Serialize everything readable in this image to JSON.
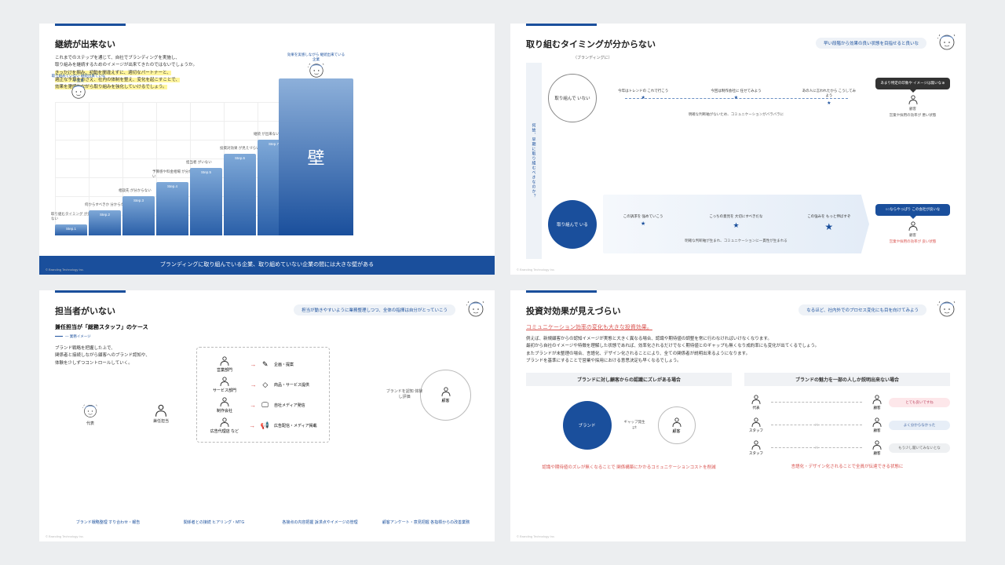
{
  "copyright": "© Branding Technology Inc.",
  "slide1": {
    "title": "継続が出来ない",
    "intro_a": "これまでのステップを通じて、自社でブランディングを実施し、",
    "intro_b": "取り組みを継続するためのイメージが出来てきたのではないでしょうか。",
    "hl_a": "きっかけを掴み、初動を間違えずに、適切なパートナーと、",
    "hl_b": "適正な予算をおさえ、社内の体制を整え、変化を起こすことで、",
    "hl_c": "効果を実感しながら取り組みを強化していけるでしょう。",
    "corp_left": "取り組めていない 継続出来ていない企業",
    "corp_right": "効果を実感しながら 継続出来ている企業",
    "step_prefix": "Step.",
    "step_labels": [
      "",
      "取り組むタイミング が分からない",
      "何からすべきか 分からない",
      "相談先 が分からない",
      "予算感や料金相場 が分からない",
      "担当者 がいない",
      "投資対効果 が見えづらい",
      "継続 が出来ない"
    ],
    "steps_count": 7,
    "wall": "壁",
    "footer": "ブランディングに取り組んでいる企業、取り組めていない企業の間には大きな壁がある"
  },
  "slide2": {
    "title": "取り組むタイミングが分からない",
    "pill": "早い段階から効果の良い状態を目指せると良いな",
    "side": "何故、早期に取り組むべきなのか？",
    "branding_label": "（ブランディングに）",
    "row1": {
      "circle": "取り組んで いない",
      "points": [
        "今年はトレンドの これで行こう",
        "今回は制作会社に 任せてみよう",
        "あの人に言われたから こうしてみよう"
      ],
      "subline": "明確な判断軸がないため、コミュニケーションがバラバラに",
      "speech": "あまり特定の印象や イメージは無いなぁ",
      "cust": "顧客",
      "result": "営業や採用の効率が 悪い状態"
    },
    "row2": {
      "circle": "取り組んで いる",
      "points": [
        "この訴求を 強めていこう",
        "こっちの意見を 大切にすべきだな",
        "この強みを もっと伸ばすぞ"
      ],
      "subline": "明確な判断軸が生まれ、コミュニケーションに一貫性が生まれる",
      "speech": "○○ならやっぱり この会社が良いな",
      "cust": "顧客",
      "result": "営業や採用の効率が 良い状態"
    }
  },
  "slide3": {
    "title": "担当者がいない",
    "pill": "担当が動きやすいように業務整理しつつ、全体の指揮は自分がとっていこう",
    "subtitle": "兼任担当が「総務スタッフ」のケース",
    "legend": "— 業務イメージ",
    "desc_a": "ブランド戦略を把握した上で、",
    "desc_b": "関係者と接続しながら顧客へのブランド認知や、",
    "desc_c": "体験を少しずつコントロールしていく。",
    "nodes": {
      "rep": "代表",
      "tantou": "兼任担当"
    },
    "mid": [
      {
        "dept": "営業部門",
        "act": "企画・提案"
      },
      {
        "dept": "サービス部門",
        "act": "商品・サービス提供"
      },
      {
        "dept": "制作会社",
        "act": "自社メディア発信"
      },
      {
        "dept": "広告代理店 など",
        "act": "広告配信・メディア掲載"
      }
    ],
    "customer_circle": "顧客",
    "customer_side": "ブランドを認知 体験し評価",
    "bottom_labels": [
      "ブランド戦略整理 すり合わせ・報告",
      "関係者との接続 ヒアリング・MTG",
      "各接点の内容把握 訴求点やイメージの管理",
      "顧客アンケート・意見把握 各指標からの改善業務"
    ]
  },
  "slide4": {
    "title": "投資対効果が見えづらい",
    "pill": "なるほど、社内外でのプロセス変化にも目を向けてみよう",
    "headline": "コミュニケーション効率の変化も大きな投資効果。",
    "desc": [
      "例えば、新規顧客からの認知イメージが実態と大きく異なる場合、認識や期待値の調整を常に行わなければいけなくなります。",
      "最初から自社のイメージや特徴を理解した状態であれば、効率化されるだけでなく期待値とのギャップも無くなり成約率にも変化が出てくるでしょう。",
      "またブランドが未整理の場合、言語化、デザイン化されることにより、全ての関係者が説明出来るようになります。",
      "ブランドを基準にすることで営業や採用における意思決定も早くなるでしょう。"
    ],
    "col_left": {
      "head": "ブランドに対し顧客からの認識にズレがある場合",
      "brand": "ブランド",
      "gap": "ギャップ発生",
      "cust": "顧客",
      "footer": "認識や期待値のズレが無くなることで 関係構築にかかるコミュニケーションコストを削減"
    },
    "col_right": {
      "head": "ブランドの魅力を一部の人しか説明出来ない場合",
      "rows": [
        {
          "left": "代表",
          "right": "顧客",
          "pill": "とても良いですね",
          "bg": "#fde7ea",
          "color": "#c0506a"
        },
        {
          "left": "スタッフ",
          "right": "顧客",
          "pill": "よく分からなかった",
          "bg": "#e7eef7",
          "color": "#3a5f9e"
        },
        {
          "left": "スタッフ",
          "right": "顧客",
          "pill": "もう少し聞いてみないとな",
          "bg": "#eef0f2",
          "color": "#666"
        }
      ],
      "footer": "言語化・デザイン化されることで全員が伝達できる状態に"
    }
  },
  "colors": {
    "accent": "#1a4f9c",
    "red": "#d9534f"
  }
}
